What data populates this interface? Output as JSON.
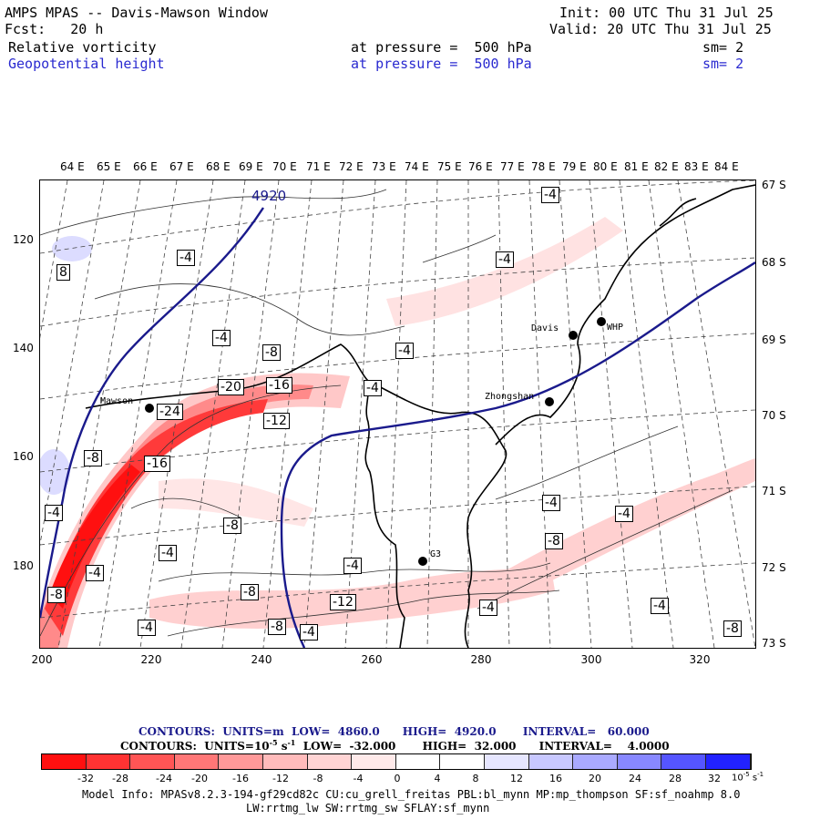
{
  "header": {
    "title": "AMPS MPAS -- Davis-Mawson Window",
    "fcst": "Fcst:   20 h",
    "init": "Init: 00 UTC Thu 31 Jul 25",
    "valid": "Valid: 20 UTC Thu 31 Jul 25",
    "field1": "Relative vorticity",
    "field1_level": "at pressure =  500 hPa",
    "field1_sm": "sm= 2",
    "field2": "Geopotential height",
    "field2_level": "at pressure =  500 hPa",
    "field2_sm": "sm= 2"
  },
  "map": {
    "longitude_labels": [
      "64 E",
      "65 E",
      "66 E",
      "67 E",
      "68 E",
      "69 E",
      "70 E",
      "71 E",
      "72 E",
      "73 E",
      "74 E",
      "75 E",
      "76 E",
      "77 E",
      "78 E",
      "79 E",
      "80 E",
      "81 E",
      "82 E",
      "83 E",
      "84 E"
    ],
    "latitude_labels": [
      "67 S",
      "68 S",
      "69 S",
      "70 S",
      "71 S",
      "72 S",
      "73 S"
    ],
    "x_ticks": [
      "200",
      "220",
      "240",
      "260",
      "280",
      "300",
      "320"
    ],
    "y_ticks": [
      "120",
      "140",
      "160",
      "180"
    ],
    "stations": [
      "Mawson",
      "Davis",
      "WHP",
      "Zhongshan",
      "G3"
    ],
    "height_contour_label": "4920",
    "vorticity_labels": [
      "-4",
      "-4",
      "-4",
      "-4",
      "-4",
      "-4",
      "-4",
      "-4",
      "-4",
      "-4",
      "-4",
      "-4",
      "-4",
      "-4",
      "-4",
      "-4",
      "-8",
      "-8",
      "-8",
      "-8",
      "-8",
      "-8",
      "-8",
      "-8",
      "-12",
      "-12",
      "-16",
      "-16",
      "-20",
      "-24",
      "8"
    ]
  },
  "legend": {
    "contours1": "CONTOURS:  UNITS=m  LOW=  4860.0      HIGH=  4920.0       INTERVAL=   60.000",
    "contours2_a": "CONTOURS:  UNITS=10",
    "contours2_exp": "-5",
    "contours2_b": " s",
    "contours2_exp2": "-1",
    "contours2_c": "  LOW=  -32.000       HIGH=  32.000      INTERVAL=    4.0000",
    "colorbar_labels": [
      "-32",
      "-28",
      "-24",
      "-20",
      "-16",
      "-12",
      "-8",
      "-4",
      "0",
      "4",
      "8",
      "12",
      "16",
      "20",
      "24",
      "28",
      "32"
    ],
    "colorbar_unit": "10",
    "colorbar_unit_exp": "-5",
    "colorbar_unit_b": " s",
    "colorbar_unit_exp2": "-1",
    "colors": [
      "#ff1010",
      "#ff3333",
      "#ff5555",
      "#ff7777",
      "#ff9999",
      "#ffbbbb",
      "#ffd4d4",
      "#ffeaea",
      "#ffffff",
      "#ffffff",
      "#e6e6ff",
      "#c8c8ff",
      "#aaaaff",
      "#8888ff",
      "#5555ff",
      "#2222ff"
    ]
  },
  "footer": {
    "line1": "Model Info: MPASv8.2.3-194-gf29cd82c CU:cu_grell_freitas PBL:bl_mynn MP:mp_thompson SF:sf_noahmp 8.0",
    "line2": "LW:rrtmg_lw SW:rrtmg_sw SFLAY:sf_mynn"
  }
}
